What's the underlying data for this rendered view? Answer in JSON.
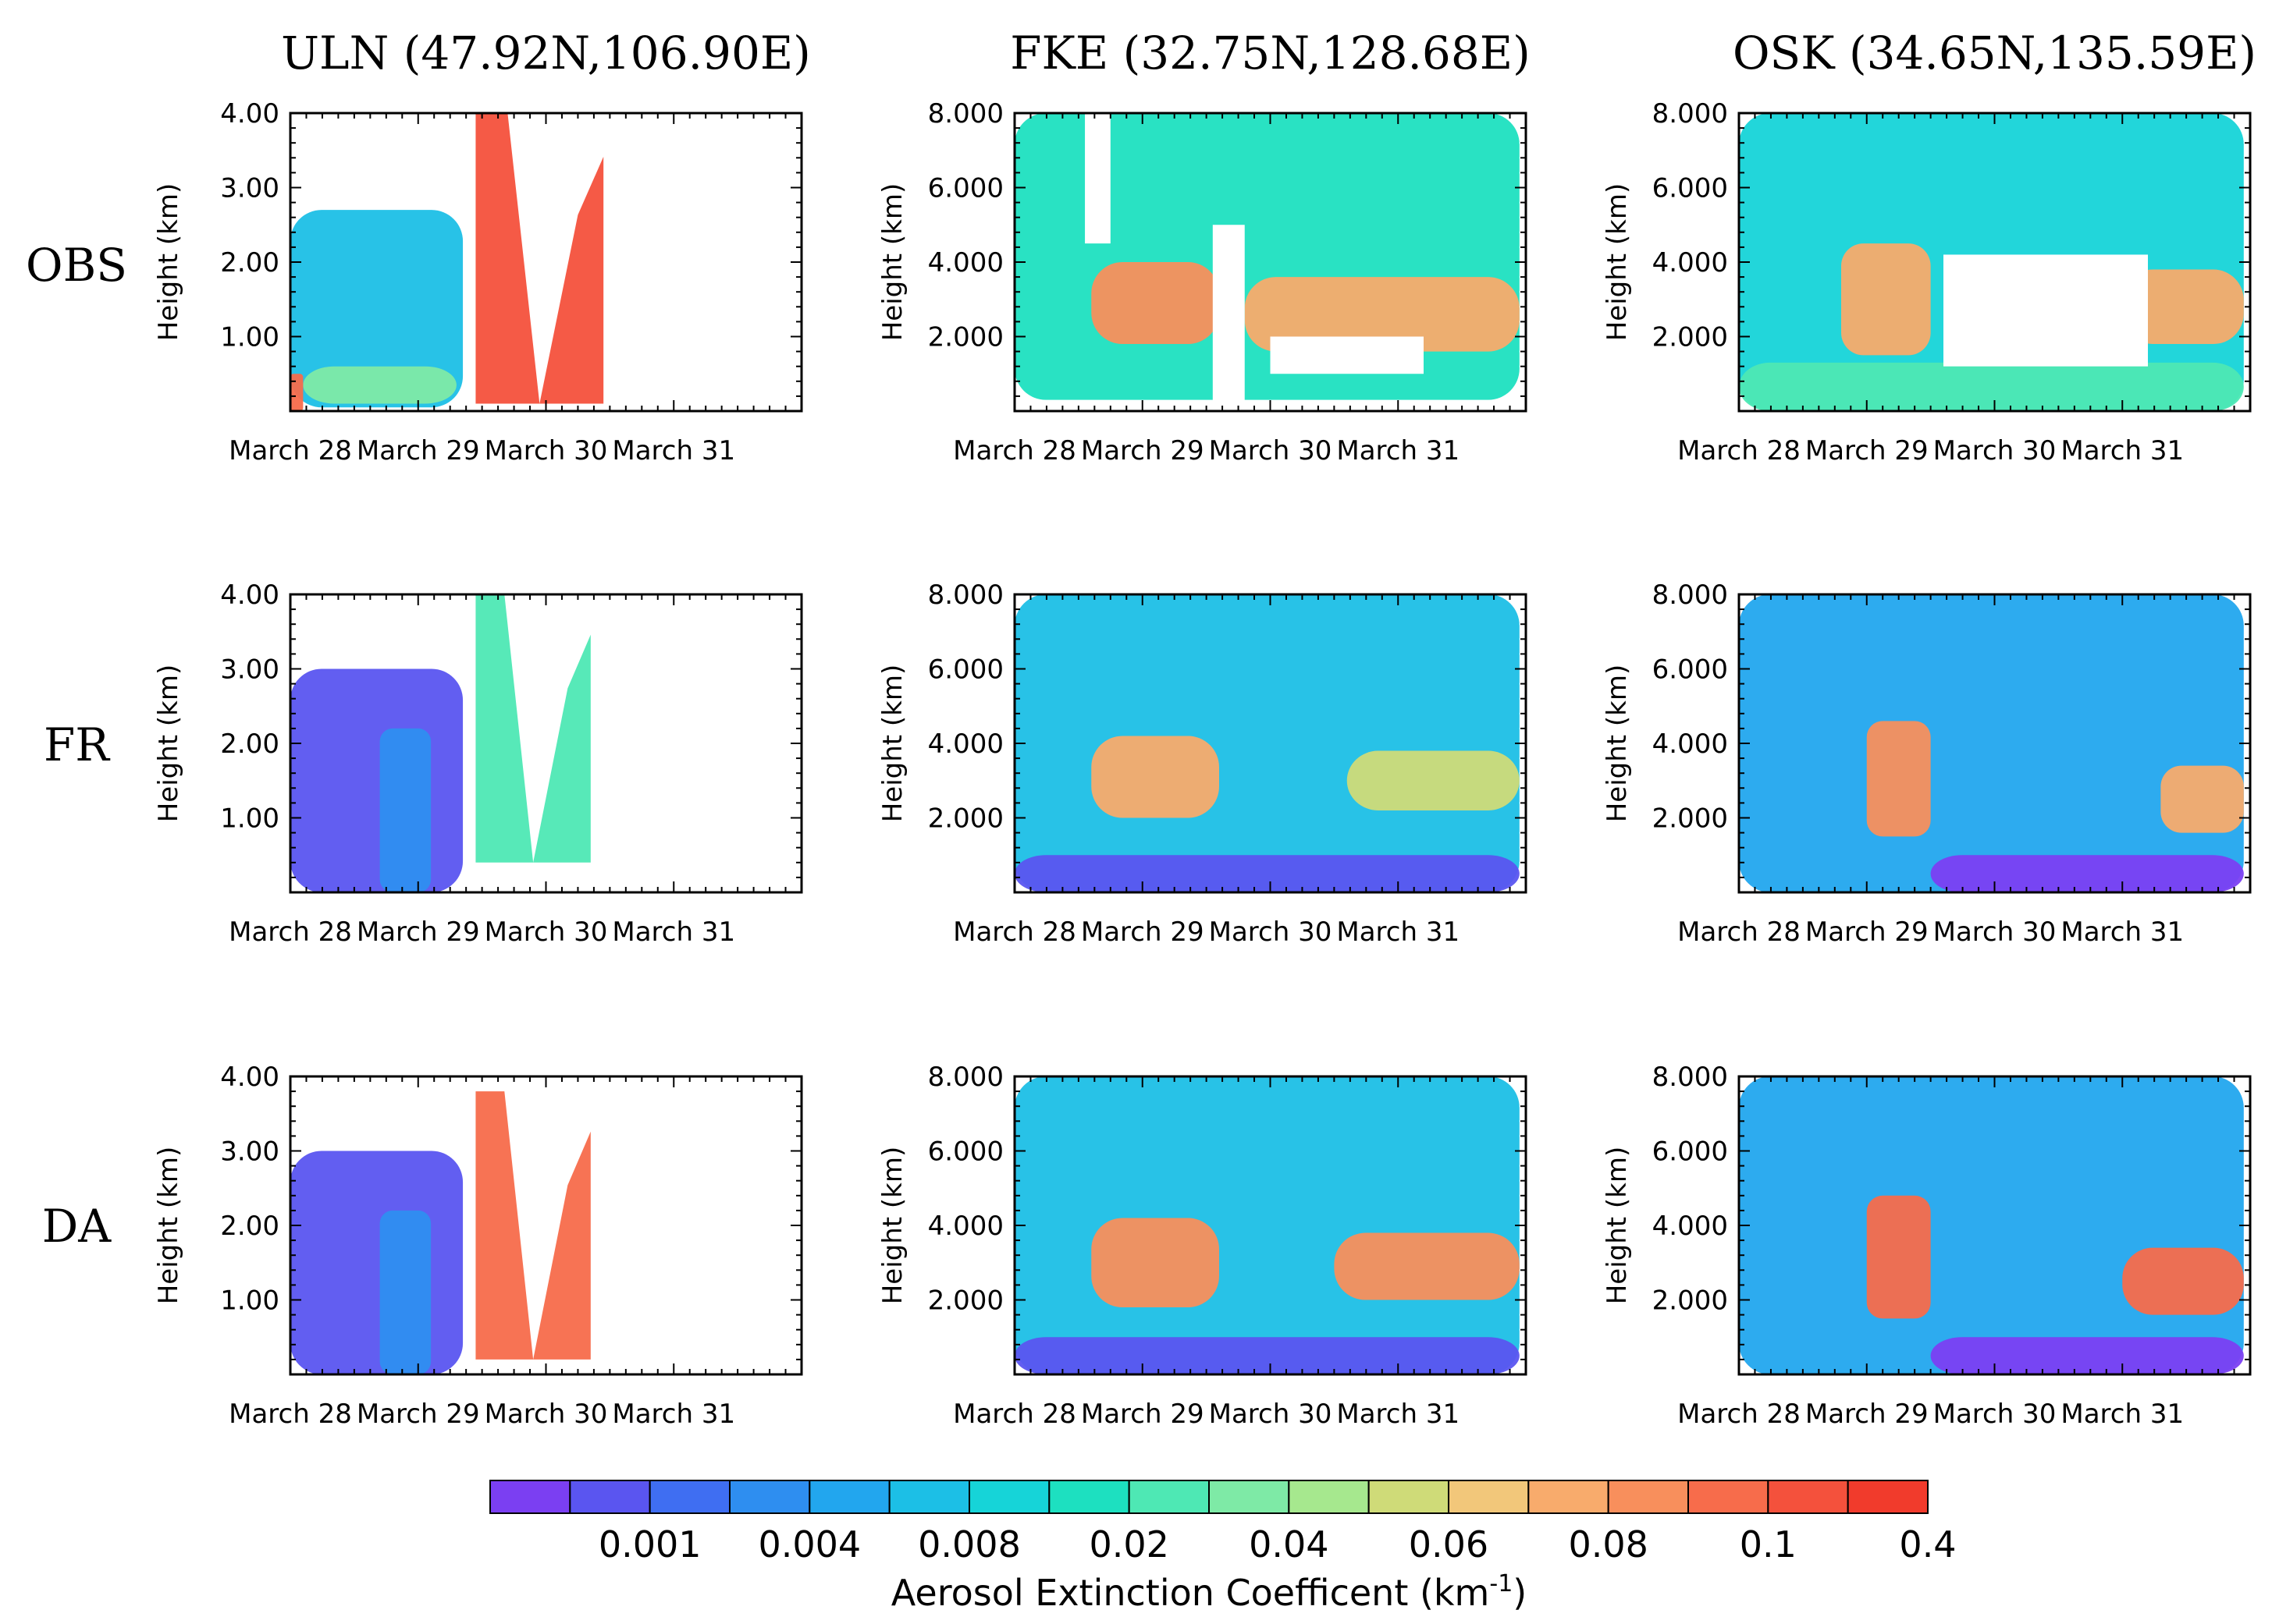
{
  "chart_data": {
    "type": "heatmap",
    "description_note": "3x3 grid of time-height curtain plots of aerosol extinction coefficient",
    "columns": [
      {
        "station": "ULN",
        "title": "ULN (47.92N,106.90E)",
        "ylim": [
          0,
          4
        ],
        "yticks": [
          "4.00",
          "3.00",
          "2.00",
          "1.00"
        ],
        "ytick_values": [
          4,
          3,
          2,
          1
        ]
      },
      {
        "station": "FKE",
        "title": "FKE (32.75N,128.68E)",
        "ylim": [
          0,
          8
        ],
        "yticks": [
          "8.000",
          "6.000",
          "4.000",
          "2.000"
        ],
        "ytick_values": [
          8,
          6,
          4,
          2
        ]
      },
      {
        "station": "OSK",
        "title": "OSK (34.65N,135.59E)",
        "ylim": [
          0,
          8
        ],
        "yticks": [
          "8.000",
          "6.000",
          "4.000",
          "2.000"
        ],
        "ytick_values": [
          8,
          6,
          4,
          2
        ]
      }
    ],
    "rows": [
      "OBS",
      "FR",
      "DA"
    ],
    "xlabels": [
      "March 28",
      "March 29",
      "March 30",
      "March 31"
    ],
    "x_range_days": [
      28,
      32
    ],
    "ylabel": "Height (km)",
    "colorbar": {
      "title_main": "Aerosol Extinction Coefficent (km",
      "title_sup": "-1",
      "title_end": ")",
      "labels": [
        "0.001",
        "0.004",
        "0.008",
        "0.02",
        "0.04",
        "0.06",
        "0.08",
        "0.1",
        "0.4"
      ],
      "colors": [
        "#7b3ff2",
        "#5a55f0",
        "#3f6ef2",
        "#2e8ef0",
        "#22a6ee",
        "#1cbfe6",
        "#16d4d8",
        "#1de0c0",
        "#4ee8b4",
        "#7eeaa6",
        "#a6e88e",
        "#cfdb78",
        "#f2c77a",
        "#f8ab6c",
        "#f88f5c",
        "#f76c4b",
        "#f4513c",
        "#f13b2c"
      ]
    },
    "panels": [
      {
        "row": "OBS",
        "station": "ULN",
        "data_end_day": 29.35,
        "features": [
          {
            "kind": "layer",
            "from": 28.0,
            "to": 29.35,
            "base": 0.05,
            "top": 2.7,
            "level": 5
          },
          {
            "kind": "layer",
            "from": 28.1,
            "to": 29.3,
            "base": 0.1,
            "top": 0.6,
            "level": 9
          },
          {
            "kind": "plume",
            "from": 29.45,
            "to": 30.45,
            "base": 0.1,
            "top": 4.0,
            "level": 16
          },
          {
            "kind": "layer",
            "from": 28.0,
            "to": 28.1,
            "base": 0.0,
            "top": 0.5,
            "level": 15
          }
        ]
      },
      {
        "row": "OBS",
        "station": "FKE",
        "data_end_day": 31.95,
        "features": [
          {
            "kind": "layer",
            "from": 28.0,
            "to": 31.95,
            "base": 0.3,
            "top": 8.0,
            "level": 7
          },
          {
            "kind": "layer",
            "from": 28.6,
            "to": 29.6,
            "base": 1.8,
            "top": 4.0,
            "level": 14
          },
          {
            "kind": "layer",
            "from": 29.8,
            "to": 31.95,
            "base": 1.6,
            "top": 3.6,
            "level": 13
          },
          {
            "kind": "gap",
            "from": 28.55,
            "to": 28.75,
            "base": 4.5,
            "top": 8.0
          },
          {
            "kind": "gap",
            "from": 29.55,
            "to": 29.8,
            "base": 0.0,
            "top": 5.0
          },
          {
            "kind": "gap",
            "from": 30.0,
            "to": 31.2,
            "base": 1.0,
            "top": 2.0
          }
        ]
      },
      {
        "row": "OBS",
        "station": "OSK",
        "data_end_day": 31.95,
        "features": [
          {
            "kind": "layer",
            "from": 28.0,
            "to": 31.95,
            "base": 0.0,
            "top": 8.0,
            "level": 6
          },
          {
            "kind": "layer",
            "from": 28.0,
            "to": 31.95,
            "base": 0.0,
            "top": 1.3,
            "level": 8
          },
          {
            "kind": "layer",
            "from": 28.8,
            "to": 29.5,
            "base": 1.5,
            "top": 4.5,
            "level": 13
          },
          {
            "kind": "layer",
            "from": 31.0,
            "to": 31.95,
            "base": 1.8,
            "top": 3.8,
            "level": 13
          },
          {
            "kind": "gap",
            "from": 29.6,
            "to": 31.2,
            "base": 1.2,
            "top": 4.2
          }
        ]
      },
      {
        "row": "FR",
        "station": "ULN",
        "data_end_day": 29.35,
        "features": [
          {
            "kind": "layer",
            "from": 28.0,
            "to": 29.35,
            "base": 0.0,
            "top": 3.0,
            "level": 1
          },
          {
            "kind": "layer",
            "from": 28.7,
            "to": 29.1,
            "base": 0.0,
            "top": 2.2,
            "level": 3
          },
          {
            "kind": "plume",
            "from": 29.45,
            "to": 30.35,
            "base": 0.4,
            "top": 4.0,
            "level": 8
          }
        ]
      },
      {
        "row": "FR",
        "station": "FKE",
        "data_end_day": 31.95,
        "features": [
          {
            "kind": "layer",
            "from": 28.0,
            "to": 31.95,
            "base": 0.0,
            "top": 8.0,
            "level": 5
          },
          {
            "kind": "layer",
            "from": 28.0,
            "to": 31.95,
            "base": 0.0,
            "top": 1.0,
            "level": 1
          },
          {
            "kind": "layer",
            "from": 28.6,
            "to": 29.6,
            "base": 2.0,
            "top": 4.2,
            "level": 13
          },
          {
            "kind": "layer",
            "from": 30.6,
            "to": 31.95,
            "base": 2.2,
            "top": 3.8,
            "level": 11
          }
        ]
      },
      {
        "row": "FR",
        "station": "OSK",
        "data_end_day": 31.95,
        "features": [
          {
            "kind": "layer",
            "from": 28.0,
            "to": 31.95,
            "base": 0.0,
            "top": 8.0,
            "level": 4
          },
          {
            "kind": "layer",
            "from": 29.0,
            "to": 29.5,
            "base": 1.5,
            "top": 4.6,
            "level": 14
          },
          {
            "kind": "layer",
            "from": 31.3,
            "to": 31.95,
            "base": 1.6,
            "top": 3.4,
            "level": 13
          },
          {
            "kind": "layer",
            "from": 29.5,
            "to": 31.95,
            "base": 0.0,
            "top": 1.0,
            "level": 0
          }
        ]
      },
      {
        "row": "DA",
        "station": "ULN",
        "data_end_day": 29.35,
        "features": [
          {
            "kind": "layer",
            "from": 28.0,
            "to": 29.35,
            "base": 0.0,
            "top": 3.0,
            "level": 1
          },
          {
            "kind": "layer",
            "from": 28.7,
            "to": 29.1,
            "base": 0.0,
            "top": 2.2,
            "level": 3
          },
          {
            "kind": "plume",
            "from": 29.45,
            "to": 30.35,
            "base": 0.2,
            "top": 3.8,
            "level": 15
          }
        ]
      },
      {
        "row": "DA",
        "station": "FKE",
        "data_end_day": 31.95,
        "features": [
          {
            "kind": "layer",
            "from": 28.0,
            "to": 31.95,
            "base": 0.0,
            "top": 8.0,
            "level": 5
          },
          {
            "kind": "layer",
            "from": 28.0,
            "to": 31.95,
            "base": 0.0,
            "top": 1.0,
            "level": 1
          },
          {
            "kind": "layer",
            "from": 28.6,
            "to": 29.6,
            "base": 1.8,
            "top": 4.2,
            "level": 14
          },
          {
            "kind": "layer",
            "from": 30.5,
            "to": 31.95,
            "base": 2.0,
            "top": 3.8,
            "level": 14
          }
        ]
      },
      {
        "row": "DA",
        "station": "OSK",
        "data_end_day": 31.95,
        "features": [
          {
            "kind": "layer",
            "from": 28.0,
            "to": 31.95,
            "base": 0.0,
            "top": 8.0,
            "level": 4
          },
          {
            "kind": "layer",
            "from": 29.0,
            "to": 29.5,
            "base": 1.5,
            "top": 4.8,
            "level": 15
          },
          {
            "kind": "layer",
            "from": 31.0,
            "to": 31.95,
            "base": 1.6,
            "top": 3.4,
            "level": 15
          },
          {
            "kind": "layer",
            "from": 29.5,
            "to": 31.95,
            "base": 0.0,
            "top": 1.0,
            "level": 0
          }
        ]
      }
    ]
  }
}
